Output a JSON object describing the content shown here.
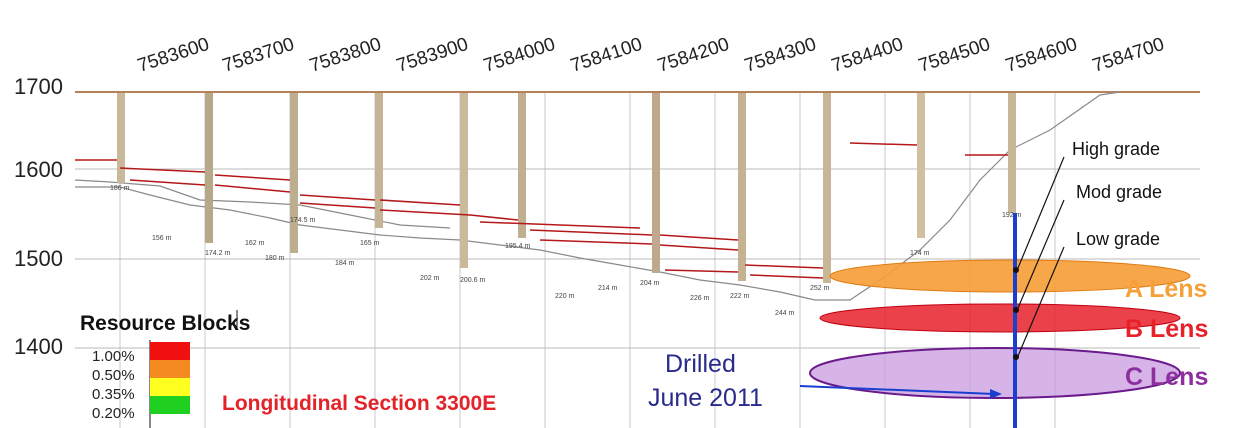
{
  "x_ticks": [
    "7583600",
    "7583700",
    "7583800",
    "7583900",
    "7584000",
    "7584100",
    "7584200",
    "7584300",
    "7584400",
    "7584500",
    "7584600",
    "7584700"
  ],
  "elevation_ticks": [
    "1700",
    "1600",
    "1500",
    "1400"
  ],
  "grade_callouts": [
    "High grade",
    "Mod grade",
    "Low grade"
  ],
  "lenses": [
    {
      "name": "A Lens",
      "color": "#f6a03a"
    },
    {
      "name": "B Lens",
      "color": "#e8202a"
    },
    {
      "name": "C Lens",
      "color": "#8e2fa0"
    }
  ],
  "legend": {
    "title": "Resource Blocks",
    "items": [
      {
        "label": "1.00%",
        "color": "#f01010"
      },
      {
        "label": "0.50%",
        "color": "#f58a20"
      },
      {
        "label": "0.35%",
        "color": "#ffff20"
      },
      {
        "label": "0.20%",
        "color": "#20d020"
      }
    ]
  },
  "section_title": "Longitudinal Section 3300E",
  "drilled_note": {
    "line1": "Drilled",
    "line2": "June 2011"
  },
  "hole_depths": [
    "186 m",
    "156 m",
    "174.2 m",
    "162 m",
    "180 m",
    "174.5 m",
    "165 m",
    "184 m",
    "202 m",
    "200.6 m",
    "195.4 m",
    "220 m",
    "214 m",
    "204 m",
    "226 m",
    "222 m",
    "244 m",
    "252 m",
    "174 m",
    "192 m"
  ],
  "colors": {
    "topo": "#b5815a",
    "new_hole": "#1a3fd0",
    "grid": "#c8c8c8",
    "section_title": "#e3222a",
    "drilled_note": "#2a2a8c"
  }
}
